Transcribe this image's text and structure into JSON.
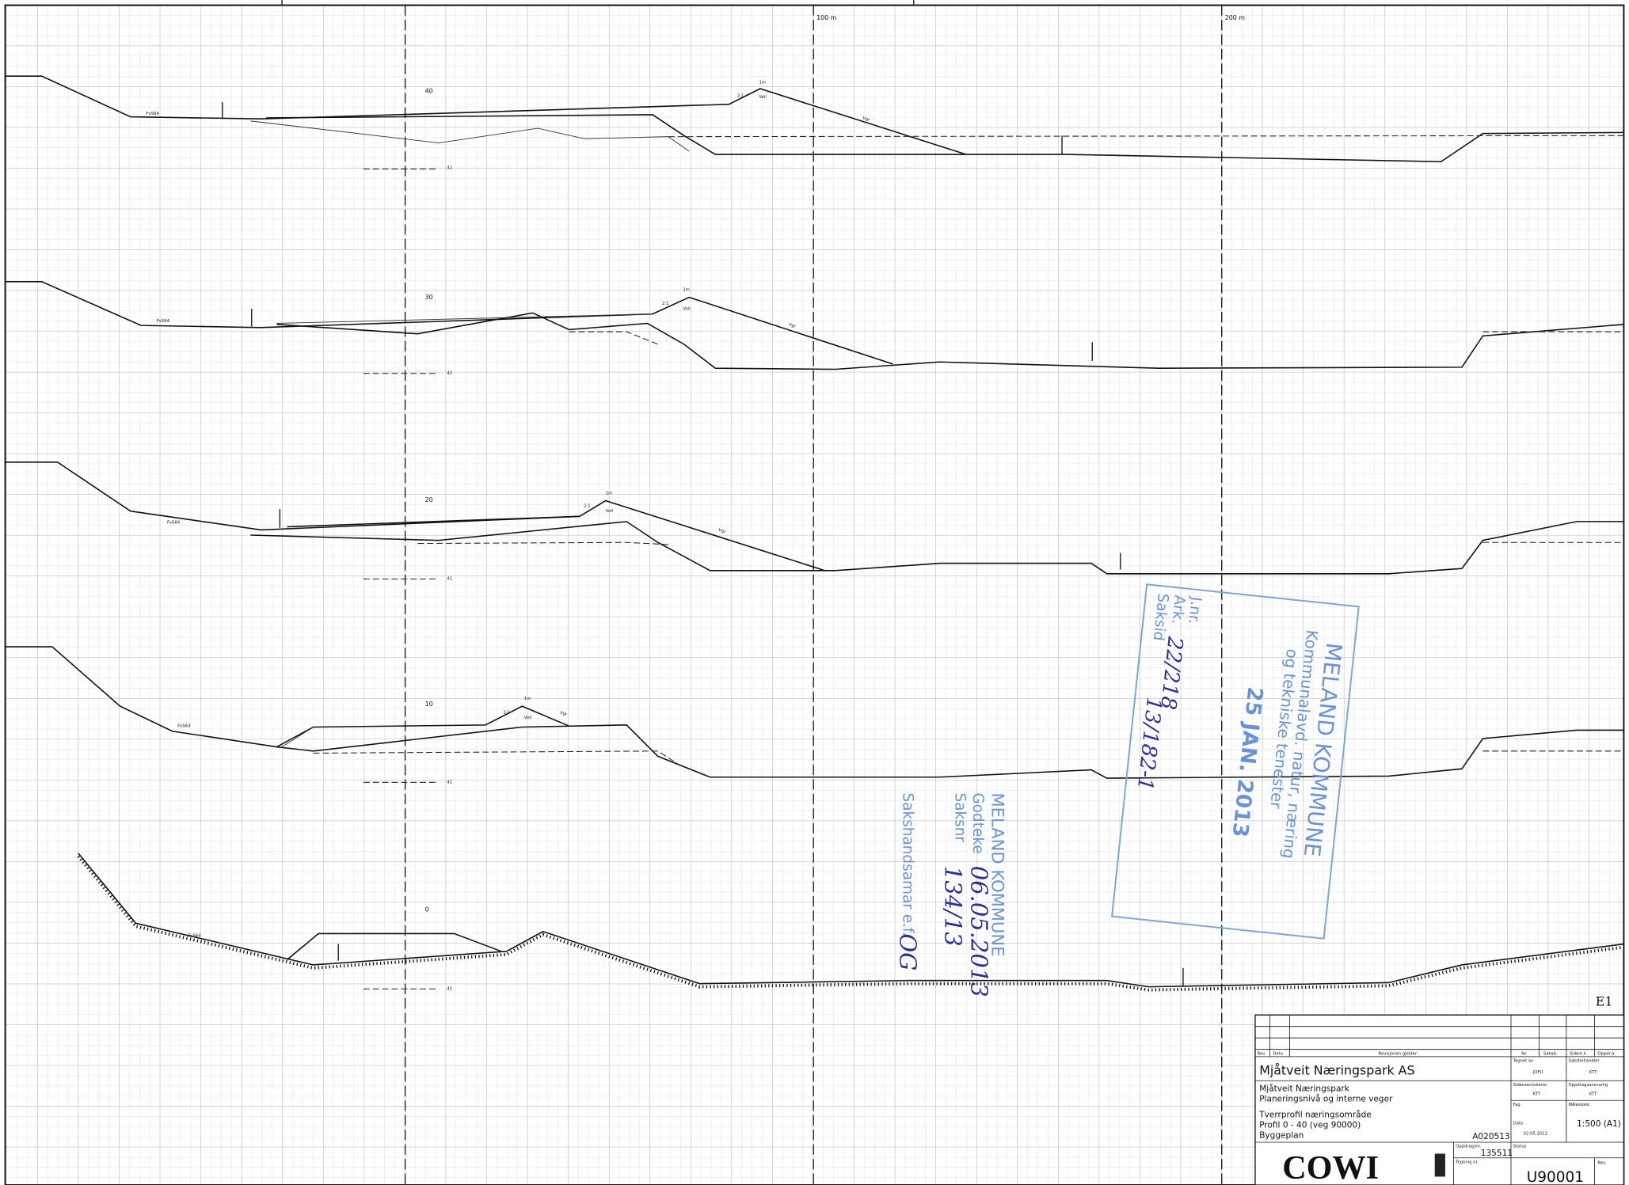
{
  "scale_marks": {
    "m100": "100 m",
    "m200": "200 m"
  },
  "profiles": [
    {
      "label": "40",
      "level": "42",
      "crest": "1m",
      "slope": "2:1",
      "berm": "Voll",
      "road": "Vgr",
      "fv": "FvS64"
    },
    {
      "label": "30",
      "level": "42",
      "crest": "1m",
      "slope": "2:1",
      "berm": "Voll",
      "road": "Vgr",
      "fv": "FvS64"
    },
    {
      "label": "20",
      "level": "41",
      "crest": "1m",
      "slope": "2:1",
      "berm": "Voll",
      "road": "Vgr",
      "fv": "FvS64"
    },
    {
      "label": "10",
      "level": "41",
      "crest": "1m",
      "slope": "2:1",
      "berm": "Voll",
      "road": "Vgr",
      "fv": "FvS64"
    },
    {
      "label": "0",
      "level": "41",
      "fv": "FvS64"
    }
  ],
  "sheet_id": "E1",
  "title_block": {
    "headers": [
      "Rev.",
      "Dato",
      "Revisjonen gjelder",
      "Nr.",
      "Sakab.",
      "Sidem.k.",
      "Oppdr.a."
    ],
    "client": "Mjåtveit Næringspark AS",
    "project": [
      "Mjåtveit Næringspark",
      "Planeringsnivå og interne veger"
    ],
    "drawing": [
      "Tverrprofil næringsområde",
      "Profil 0 - 40 (veg 90000)",
      "Byggeplan"
    ],
    "ref": "A020513",
    "drawn_by_label": "Tegnet av",
    "drawn_by": "JOFO",
    "handler_label": "Saksbehandler",
    "handler": "KTT",
    "checker_label": "Sidemannskontr.",
    "checker": "KTT",
    "responsible_label": "Oppdragsansvarlig",
    "responsible": "KTT",
    "discipline_label": "Fag",
    "scale_label": "Målestokk",
    "scale": "1:500 (A1)",
    "date_label": "Dato",
    "date": "02.05.2012",
    "status_label": "Status",
    "project_no_label": "Oppdragsnr.",
    "project_no": "135511",
    "drawing_no_label": "Tegning nr.",
    "drawing_no": "U90001",
    "rev_label": "Rev.",
    "company": "COWI"
  },
  "stamp_received": {
    "org": "MELAND KOMMUNE",
    "dept1": "Kommunalavd. natur, næring",
    "dept2": "og tekniske tenester",
    "jnr": "J.nr.",
    "ark": "Ark.",
    "saksid": "Saksid",
    "date": "25 JAN. 2013",
    "ark_no": "22/218",
    "case_no": "13/182-1"
  },
  "stamp_approved": {
    "org": "MELAND KOMMUNE",
    "approved": "Godteke",
    "saksnr": "Saksnr",
    "handler": "Sakshandsamar e.f.",
    "date": "06.05.2013",
    "case_no": "134/13",
    "initials": "OG"
  }
}
